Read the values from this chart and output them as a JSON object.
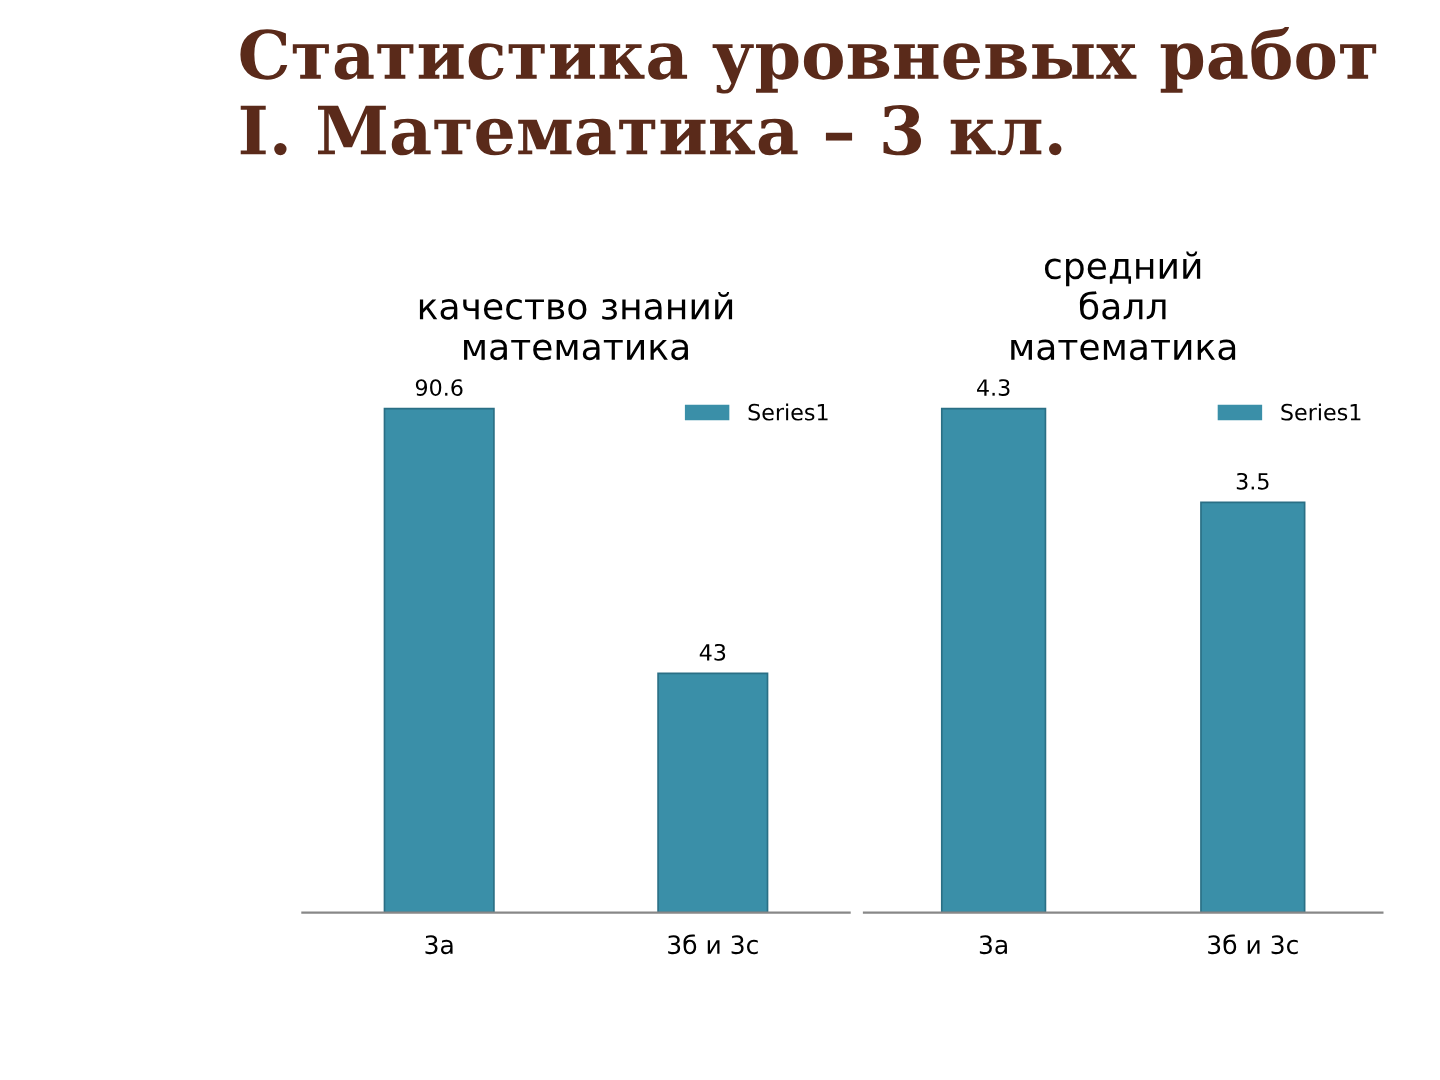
{
  "chart_data": [
    {
      "type": "bar",
      "title": "качество знаний\nматематика",
      "annotations": [
        "Статистика уровневых работ\nI. Математика – 3 кл."
      ],
      "categories": [
        "3а",
        "3б и 3с"
      ],
      "series": [
        {
          "name": "Series1",
          "color": "#3a8fa8",
          "values": [
            90.6,
            43
          ]
        }
      ],
      "data_labels": true,
      "legend": "top right",
      "grid": false
    },
    {
      "type": "bar",
      "title": "средний\nбалл\nматематика",
      "categories": [
        "3а",
        "3б и 3с"
      ],
      "series": [
        {
          "name": "Series1",
          "color": "#3a8fa8",
          "values": [
            4.3,
            3.5
          ]
        }
      ],
      "data_labels": true,
      "legend": "top right",
      "grid": false
    }
  ]
}
